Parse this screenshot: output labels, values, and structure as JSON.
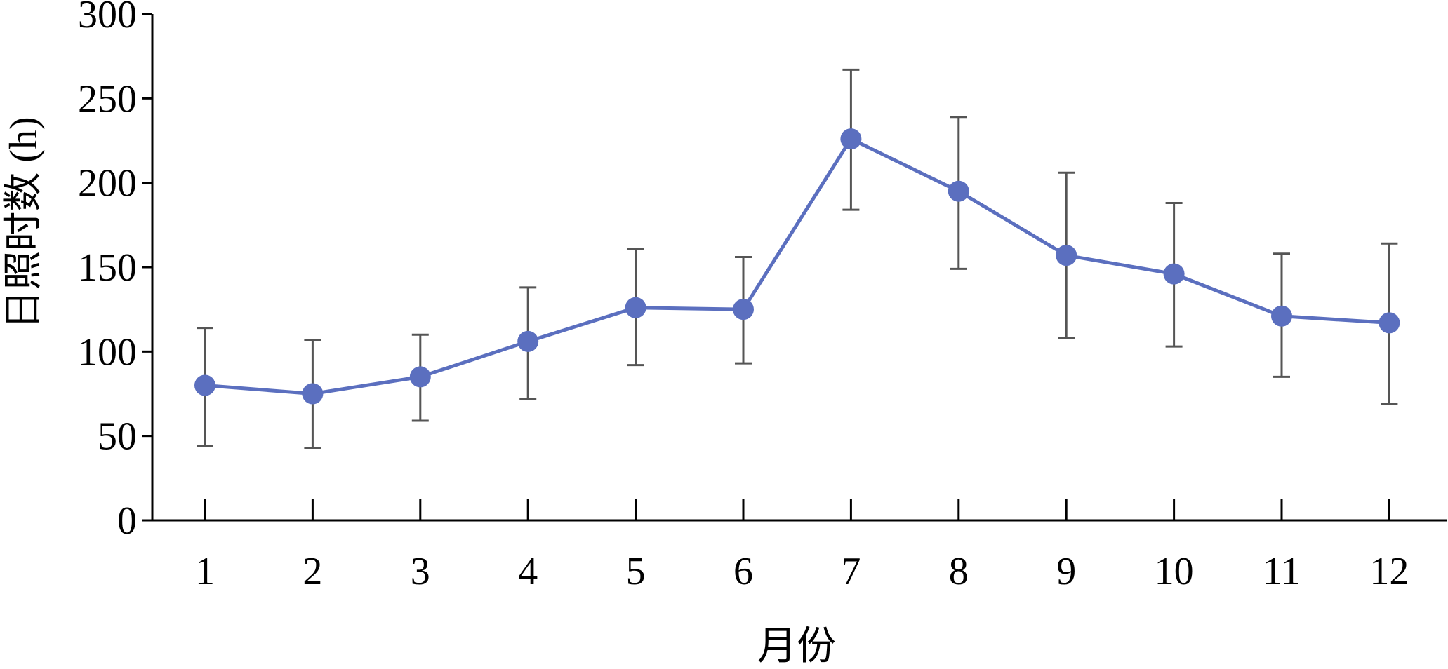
{
  "chart_data": {
    "type": "line",
    "title": "",
    "xlabel": "月份",
    "ylabel": "日照时数 (h)",
    "categories": [
      "1",
      "2",
      "3",
      "4",
      "5",
      "6",
      "7",
      "8",
      "9",
      "10",
      "11",
      "12"
    ],
    "yticks": [
      "0",
      "50",
      "100",
      "150",
      "200",
      "250",
      "300"
    ],
    "ylim": [
      0,
      300
    ],
    "grid": false,
    "legend": "none",
    "series": [
      {
        "values": [
          80,
          75,
          85,
          106,
          126,
          125,
          226,
          195,
          157,
          146,
          121,
          117
        ],
        "error_low": [
          44,
          43,
          59,
          72,
          92,
          93,
          184,
          149,
          108,
          103,
          85,
          69
        ],
        "error_high": [
          114,
          107,
          110,
          138,
          161,
          156,
          267,
          239,
          206,
          188,
          158,
          164
        ],
        "color": "#5b6fbf"
      }
    ],
    "error_bar_color": "#555555",
    "axis_color": "#000000"
  }
}
